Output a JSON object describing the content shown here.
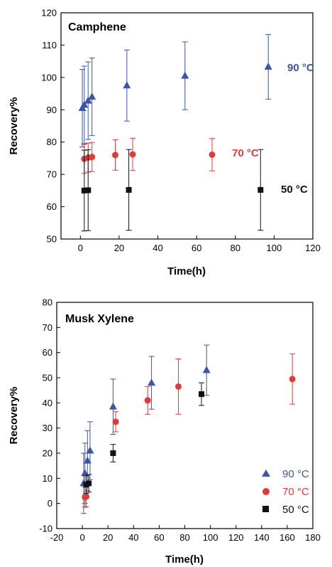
{
  "chart_data": [
    {
      "type": "scatter",
      "title": "Camphene",
      "xlabel": "Time(h)",
      "ylabel": "Recovery%",
      "xlim": [
        -10,
        120
      ],
      "ylim": [
        50,
        120
      ],
      "xticks": [
        0,
        20,
        40,
        60,
        80,
        100,
        120
      ],
      "yticks": [
        50,
        60,
        70,
        80,
        90,
        100,
        110,
        120
      ],
      "tick_labels_x": [
        "0",
        "20",
        "40",
        "60",
        "80",
        "100",
        "120"
      ],
      "tick_labels_y": [
        "50",
        "60",
        "70",
        "80",
        "90",
        "100",
        "110",
        "120"
      ],
      "legend": "inline labels at right of each series",
      "series": [
        {
          "name": "90 °C",
          "marker": "triangle",
          "color": "#3a56a8",
          "points": [
            {
              "x": 1,
              "y": 90.5,
              "err": 12
            },
            {
              "x": 2,
              "y": 91.5,
              "err": 12
            },
            {
              "x": 4,
              "y": 92.8,
              "err": 12
            },
            {
              "x": 6,
              "y": 94,
              "err": 12
            },
            {
              "x": 24,
              "y": 97.5,
              "err": 11
            },
            {
              "x": 54,
              "y": 100.5,
              "err": 10.5
            },
            {
              "x": 97,
              "y": 103.3,
              "err": 10
            }
          ]
        },
        {
          "name": "70 °C",
          "marker": "circle",
          "color": "#e03a3a",
          "points": [
            {
              "x": 2,
              "y": 74.8,
              "err": 4.5
            },
            {
              "x": 4,
              "y": 75.2,
              "err": 4.5
            },
            {
              "x": 6,
              "y": 75.4,
              "err": 4.5
            },
            {
              "x": 18,
              "y": 76,
              "err": 4.7
            },
            {
              "x": 27,
              "y": 76.2,
              "err": 5
            },
            {
              "x": 68,
              "y": 76.1,
              "err": 5
            }
          ]
        },
        {
          "name": "50 °C",
          "marker": "square",
          "color": "#111111",
          "points": [
            {
              "x": 2,
              "y": 65,
              "err": 12.5
            },
            {
              "x": 4,
              "y": 65.1,
              "err": 12.5
            },
            {
              "x": 25,
              "y": 65.2,
              "err": 12.5
            },
            {
              "x": 93,
              "y": 65.2,
              "err": 12.5
            }
          ]
        }
      ]
    },
    {
      "type": "scatter",
      "title": "Musk Xylene",
      "xlabel": "Time(h)",
      "ylabel": "Recovery%",
      "xlim": [
        -20,
        180
      ],
      "ylim": [
        -10,
        80
      ],
      "xticks": [
        -20,
        0,
        20,
        40,
        60,
        80,
        100,
        120,
        140,
        160,
        180
      ],
      "yticks": [
        -10,
        0,
        10,
        20,
        30,
        40,
        50,
        60,
        70,
        80
      ],
      "tick_labels_x": [
        "-20",
        "0",
        "20",
        "40",
        "60",
        "80",
        "100",
        "120",
        "140",
        "160",
        "180"
      ],
      "tick_labels_y": [
        "-10",
        "0",
        "10",
        "20",
        "30",
        "40",
        "50",
        "60",
        "70",
        "80"
      ],
      "legend": "bottom-right",
      "series": [
        {
          "name": "90 °C",
          "marker": "triangle",
          "color": "#3a56a8",
          "points": [
            {
              "x": 1,
              "y": 8,
              "err": 12
            },
            {
              "x": 2,
              "y": 12,
              "err": 12
            },
            {
              "x": 4,
              "y": 17,
              "err": 12
            },
            {
              "x": 6,
              "y": 21,
              "err": 11.5
            },
            {
              "x": 24,
              "y": 38.5,
              "err": 11
            },
            {
              "x": 54,
              "y": 48,
              "err": 10.5
            },
            {
              "x": 97,
              "y": 53,
              "err": 10
            }
          ]
        },
        {
          "name": "70 °C",
          "marker": "circle",
          "color": "#e03a3a",
          "points": [
            {
              "x": 2,
              "y": 2.5,
              "err": 4
            },
            {
              "x": 3,
              "y": 2.7,
              "err": 4
            },
            {
              "x": 26,
              "y": 32.5,
              "err": 4
            },
            {
              "x": 51,
              "y": 41,
              "err": 5.5
            },
            {
              "x": 75,
              "y": 46.5,
              "err": 11
            },
            {
              "x": 164,
              "y": 49.5,
              "err": 10
            }
          ]
        },
        {
          "name": "50 °C",
          "marker": "square",
          "color": "#111111",
          "points": [
            {
              "x": 3,
              "y": 7.5,
              "err": 3.5
            },
            {
              "x": 5,
              "y": 8,
              "err": 3.5
            },
            {
              "x": 24,
              "y": 20,
              "err": 3.5
            },
            {
              "x": 93,
              "y": 43.5,
              "err": 4.5
            }
          ]
        }
      ]
    }
  ]
}
